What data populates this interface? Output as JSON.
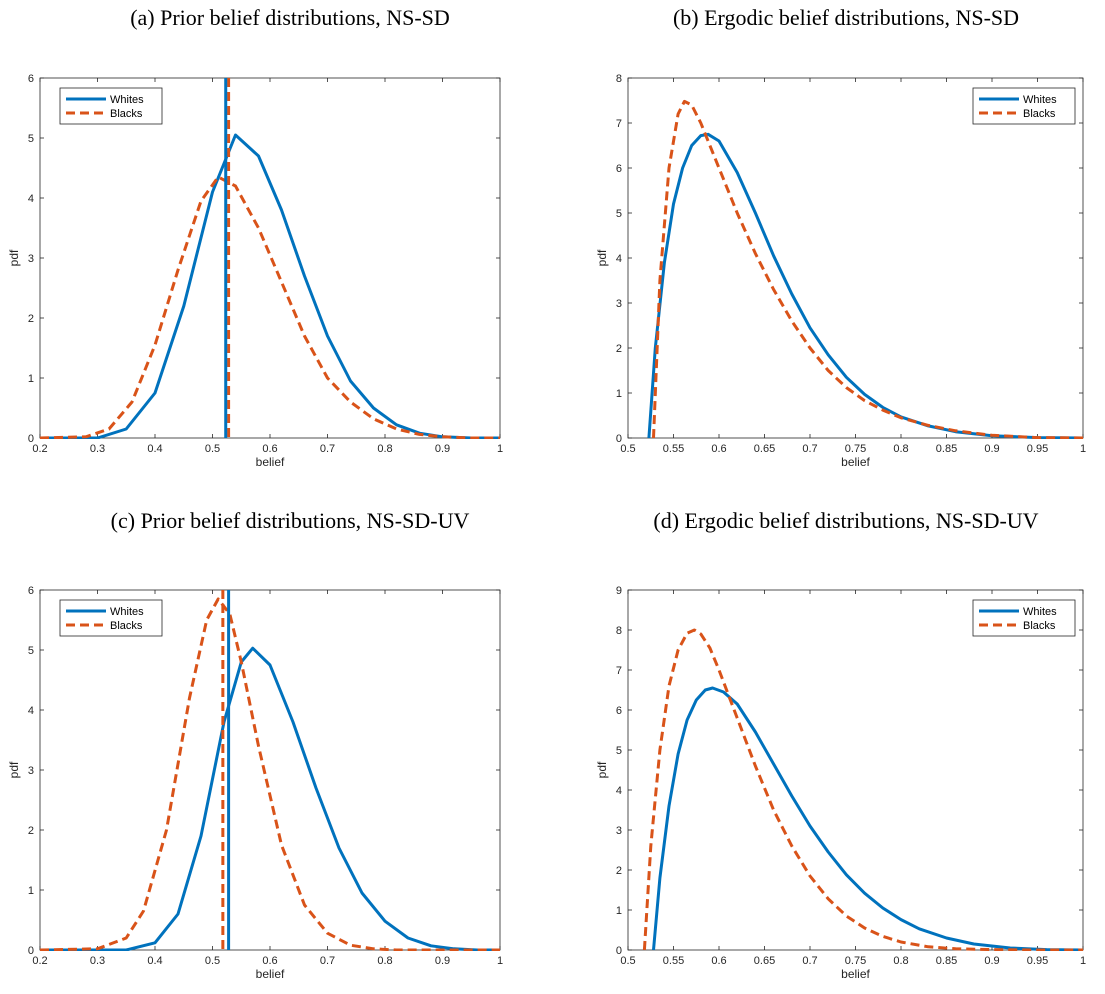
{
  "chart_data": [
    {
      "type": "line",
      "title": "(a) Prior belief distributions, NS-SD",
      "xlabel": "belief",
      "ylabel": "pdf",
      "xlim": [
        0.2,
        1
      ],
      "ylim": [
        0,
        6
      ],
      "xticks": [
        0.2,
        0.3,
        0.4,
        0.5,
        0.6,
        0.7,
        0.8,
        0.9,
        1
      ],
      "yticks": [
        0,
        1,
        2,
        3,
        4,
        5,
        6
      ],
      "xtick_labels": [
        "0.2",
        "0.3",
        "0.4",
        "0.5",
        "0.6",
        "0.7",
        "0.8",
        "0.9",
        "1"
      ],
      "ytick_labels": [
        "0",
        "1",
        "2",
        "3",
        "4",
        "5",
        "6"
      ],
      "legend_position": "top-left",
      "series": [
        {
          "name": "Whites",
          "color": "#0072BD",
          "dash": "solid",
          "x": [
            0.2,
            0.3,
            0.35,
            0.4,
            0.45,
            0.5,
            0.54,
            0.58,
            0.62,
            0.66,
            0.7,
            0.74,
            0.78,
            0.82,
            0.86,
            0.9,
            0.95,
            1.0
          ],
          "y": [
            0,
            0,
            0.15,
            0.75,
            2.2,
            4.1,
            5.05,
            4.7,
            3.8,
            2.7,
            1.7,
            0.95,
            0.5,
            0.22,
            0.08,
            0.02,
            0,
            0
          ],
          "vline": 0.523
        },
        {
          "name": "Blacks",
          "color": "#D95319",
          "dash": "dashed",
          "x": [
            0.2,
            0.28,
            0.32,
            0.36,
            0.4,
            0.44,
            0.48,
            0.51,
            0.54,
            0.58,
            0.62,
            0.66,
            0.7,
            0.74,
            0.78,
            0.82,
            0.86,
            0.9,
            0.95,
            1.0
          ],
          "y": [
            0,
            0.02,
            0.15,
            0.6,
            1.55,
            2.8,
            3.95,
            4.35,
            4.2,
            3.5,
            2.6,
            1.7,
            1.0,
            0.6,
            0.32,
            0.15,
            0.06,
            0.02,
            0,
            0
          ],
          "vline": 0.528
        }
      ]
    },
    {
      "type": "line",
      "title": "(b) Ergodic belief distributions, NS-SD",
      "xlabel": "belief",
      "ylabel": "pdf",
      "xlim": [
        0.5,
        1
      ],
      "ylim": [
        0,
        8
      ],
      "xticks": [
        0.5,
        0.55,
        0.6,
        0.65,
        0.7,
        0.75,
        0.8,
        0.85,
        0.9,
        0.95,
        1
      ],
      "yticks": [
        0,
        1,
        2,
        3,
        4,
        5,
        6,
        7,
        8
      ],
      "xtick_labels": [
        "0.5",
        "0.55",
        "0.6",
        "0.65",
        "0.7",
        "0.75",
        "0.8",
        "0.85",
        "0.9",
        "0.95",
        "1"
      ],
      "ytick_labels": [
        "0",
        "1",
        "2",
        "3",
        "4",
        "5",
        "6",
        "7",
        "8"
      ],
      "legend_position": "top-right",
      "series": [
        {
          "name": "Whites",
          "color": "#0072BD",
          "dash": "solid",
          "x": [
            0.523,
            0.53,
            0.54,
            0.55,
            0.56,
            0.57,
            0.58,
            0.588,
            0.6,
            0.62,
            0.64,
            0.66,
            0.68,
            0.7,
            0.72,
            0.74,
            0.76,
            0.78,
            0.8,
            0.83,
            0.86,
            0.9,
            0.95,
            1.0
          ],
          "y": [
            0,
            2.0,
            3.9,
            5.2,
            6.0,
            6.5,
            6.72,
            6.75,
            6.6,
            5.9,
            5.0,
            4.05,
            3.2,
            2.45,
            1.85,
            1.35,
            0.97,
            0.68,
            0.47,
            0.27,
            0.14,
            0.05,
            0.01,
            0
          ],
          "vline": null
        },
        {
          "name": "Blacks",
          "color": "#D95319",
          "dash": "dashed",
          "x": [
            0.528,
            0.535,
            0.545,
            0.555,
            0.562,
            0.57,
            0.58,
            0.6,
            0.62,
            0.64,
            0.66,
            0.68,
            0.7,
            0.72,
            0.74,
            0.76,
            0.78,
            0.8,
            0.83,
            0.86,
            0.9,
            0.95,
            1.0
          ],
          "y": [
            0,
            3.5,
            6.0,
            7.2,
            7.48,
            7.4,
            7.0,
            6.0,
            5.0,
            4.1,
            3.3,
            2.6,
            2.0,
            1.5,
            1.12,
            0.83,
            0.62,
            0.45,
            0.28,
            0.16,
            0.06,
            0.01,
            0
          ],
          "vline": null
        }
      ]
    },
    {
      "type": "line",
      "title": "(c) Prior belief distributions, NS-SD-UV",
      "xlabel": "belief",
      "ylabel": "pdf",
      "xlim": [
        0.2,
        1
      ],
      "ylim": [
        0,
        6
      ],
      "xticks": [
        0.2,
        0.3,
        0.4,
        0.5,
        0.6,
        0.7,
        0.8,
        0.9,
        1
      ],
      "yticks": [
        0,
        1,
        2,
        3,
        4,
        5,
        6
      ],
      "xtick_labels": [
        "0.2",
        "0.3",
        "0.4",
        "0.5",
        "0.6",
        "0.7",
        "0.8",
        "0.9",
        "1"
      ],
      "ytick_labels": [
        "0",
        "1",
        "2",
        "3",
        "4",
        "5",
        "6"
      ],
      "legend_position": "top-left",
      "series": [
        {
          "name": "Whites",
          "color": "#0072BD",
          "dash": "solid",
          "x": [
            0.2,
            0.35,
            0.4,
            0.44,
            0.48,
            0.52,
            0.55,
            0.57,
            0.6,
            0.64,
            0.68,
            0.72,
            0.76,
            0.8,
            0.84,
            0.88,
            0.92,
            0.96,
            1.0
          ],
          "y": [
            0,
            0,
            0.12,
            0.6,
            1.9,
            3.8,
            4.8,
            5.03,
            4.75,
            3.8,
            2.7,
            1.7,
            0.95,
            0.48,
            0.2,
            0.07,
            0.02,
            0,
            0
          ],
          "vline": 0.528
        },
        {
          "name": "Blacks",
          "color": "#D95319",
          "dash": "dashed",
          "x": [
            0.2,
            0.3,
            0.35,
            0.38,
            0.42,
            0.46,
            0.49,
            0.51,
            0.53,
            0.55,
            0.58,
            0.62,
            0.66,
            0.7,
            0.74,
            0.78,
            0.82,
            0.9,
            1.0
          ],
          "y": [
            0,
            0.02,
            0.2,
            0.65,
            2.0,
            4.2,
            5.5,
            5.85,
            5.6,
            4.8,
            3.4,
            1.75,
            0.75,
            0.28,
            0.08,
            0.02,
            0,
            0,
            0
          ],
          "vline": 0.518
        }
      ]
    },
    {
      "type": "line",
      "title": "(d) Ergodic belief distributions, NS-SD-UV",
      "xlabel": "belief",
      "ylabel": "pdf",
      "xlim": [
        0.5,
        1
      ],
      "ylim": [
        0,
        9
      ],
      "xticks": [
        0.5,
        0.55,
        0.6,
        0.65,
        0.7,
        0.75,
        0.8,
        0.85,
        0.9,
        0.95,
        1
      ],
      "yticks": [
        0,
        1,
        2,
        3,
        4,
        5,
        6,
        7,
        8,
        9
      ],
      "xtick_labels": [
        "0.5",
        "0.55",
        "0.6",
        "0.65",
        "0.7",
        "0.75",
        "0.8",
        "0.85",
        "0.9",
        "0.95",
        "1"
      ],
      "ytick_labels": [
        "0",
        "1",
        "2",
        "3",
        "4",
        "5",
        "6",
        "7",
        "8",
        "9"
      ],
      "legend_position": "top-right",
      "series": [
        {
          "name": "Whites",
          "color": "#0072BD",
          "dash": "solid",
          "x": [
            0.528,
            0.535,
            0.545,
            0.555,
            0.565,
            0.575,
            0.585,
            0.593,
            0.605,
            0.62,
            0.64,
            0.66,
            0.68,
            0.7,
            0.72,
            0.74,
            0.76,
            0.78,
            0.8,
            0.82,
            0.85,
            0.88,
            0.92,
            0.96,
            1.0
          ],
          "y": [
            0,
            1.8,
            3.6,
            4.9,
            5.75,
            6.25,
            6.5,
            6.55,
            6.45,
            6.15,
            5.45,
            4.65,
            3.85,
            3.1,
            2.45,
            1.88,
            1.42,
            1.05,
            0.76,
            0.53,
            0.3,
            0.15,
            0.05,
            0.01,
            0
          ],
          "vline": null
        },
        {
          "name": "Blacks",
          "color": "#D95319",
          "dash": "dashed",
          "x": [
            0.518,
            0.525,
            0.535,
            0.545,
            0.555,
            0.565,
            0.573,
            0.58,
            0.59,
            0.6,
            0.62,
            0.64,
            0.66,
            0.68,
            0.7,
            0.72,
            0.74,
            0.76,
            0.78,
            0.8,
            0.83,
            0.86,
            0.9,
            0.95,
            1.0
          ],
          "y": [
            0,
            2.6,
            5.0,
            6.6,
            7.5,
            7.92,
            8.0,
            7.9,
            7.55,
            7.0,
            5.8,
            4.6,
            3.5,
            2.6,
            1.85,
            1.28,
            0.85,
            0.55,
            0.34,
            0.2,
            0.08,
            0.03,
            0.01,
            0,
            0
          ],
          "vline": null
        }
      ]
    }
  ]
}
